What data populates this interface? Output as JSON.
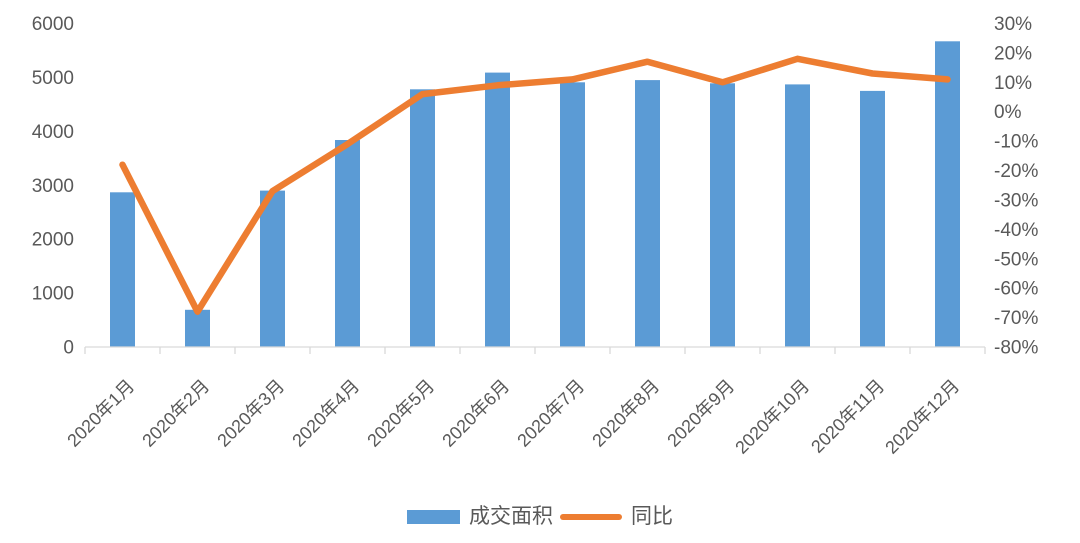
{
  "chart_data": {
    "type": "combo",
    "title": "",
    "categories": [
      "2020年1月",
      "2020年2月",
      "2020年3月",
      "2020年4月",
      "2020年5月",
      "2020年6月",
      "2020年7月",
      "2020年8月",
      "2020年9月",
      "2020年10月",
      "2020年11月",
      "2020年12月"
    ],
    "series": [
      {
        "name": "成交面积",
        "type": "bar",
        "axis": "left",
        "color": "#5B9BD5",
        "values": [
          2870,
          690,
          2900,
          3840,
          4780,
          5090,
          4910,
          4950,
          4890,
          4870,
          4750,
          5670
        ]
      },
      {
        "name": "同比",
        "type": "line",
        "axis": "right",
        "color": "#ED7D31",
        "values_pct": [
          -18,
          -68,
          -27,
          -11,
          6,
          9,
          11,
          17,
          10,
          18,
          13,
          11
        ]
      }
    ],
    "left_axis": {
      "min": 0,
      "max": 6000,
      "step": 1000,
      "ticks": [
        "0",
        "1000",
        "2000",
        "3000",
        "4000",
        "5000",
        "6000"
      ]
    },
    "right_axis": {
      "min": -80,
      "max": 30,
      "step": 10,
      "ticks": [
        "30%",
        "20%",
        "10%",
        "0%",
        "-10%",
        "-20%",
        "-30%",
        "-40%",
        "-50%",
        "-60%",
        "-70%",
        "-80%"
      ]
    },
    "grid": "off",
    "legend_position": "bottom",
    "axis_text_color": "#595959",
    "axis_line_color": "#D9D9D9"
  },
  "legend": {
    "bar_label": "成交面积",
    "line_label": "同比"
  }
}
